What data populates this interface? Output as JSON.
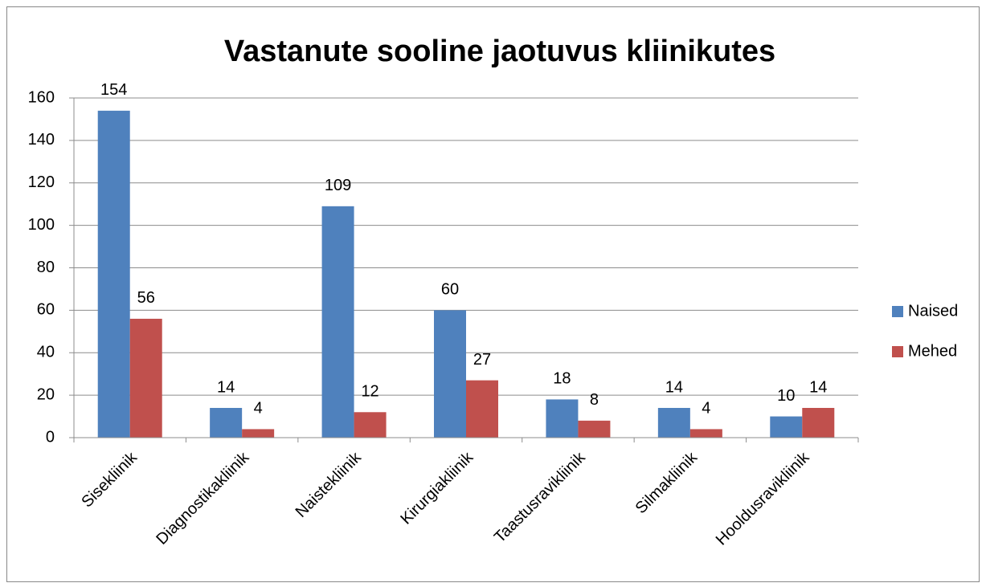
{
  "chart_data": {
    "type": "bar",
    "title": "Vastanute sooline jaotuvus kliinikutes",
    "categories": [
      "Sisekliinik",
      "Diagnostikakliinik",
      "Naistekliinik",
      "Kirurgiakliinik",
      "Taastusravikliinik",
      "Silmakliinik",
      "Hooldusravikliinik"
    ],
    "series": [
      {
        "name": "Naised",
        "color": "#4f81bd",
        "values": [
          154,
          14,
          109,
          60,
          18,
          14,
          10
        ]
      },
      {
        "name": "Mehed",
        "color": "#c0504d",
        "values": [
          56,
          4,
          12,
          27,
          8,
          4,
          14
        ]
      }
    ],
    "ylim": [
      0,
      160
    ],
    "yticks": [
      0,
      20,
      40,
      60,
      80,
      100,
      120,
      140,
      160
    ],
    "grid": true,
    "legend": "right"
  }
}
